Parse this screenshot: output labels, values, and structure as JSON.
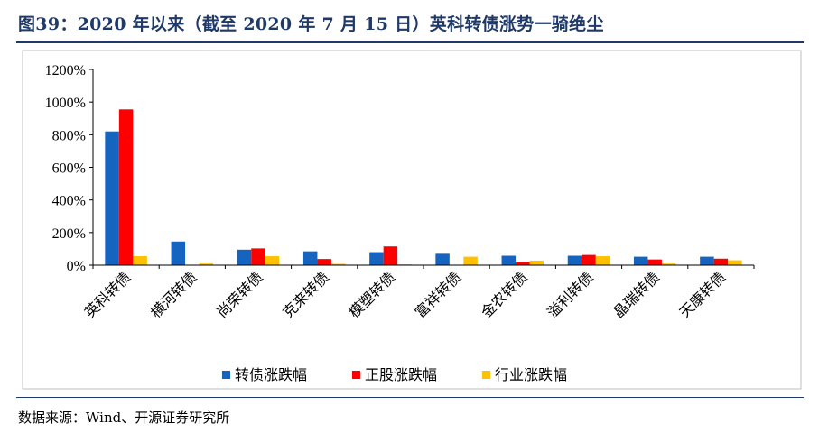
{
  "header": {
    "title": "图39：2020 年以来（截至 2020 年 7 月 15 日）英科转债涨势一骑绝尘"
  },
  "footer": {
    "source": "数据来源：Wind、开源证券研究所"
  },
  "colors": {
    "title": "#1f3a68",
    "series_blue": "#1565c0",
    "series_red": "#ff0000",
    "series_yellow": "#ffc000"
  },
  "chart_data": {
    "type": "bar",
    "categories": [
      "英科转债",
      "横河转债",
      "尚荣转债",
      "克来转债",
      "模塑转债",
      "富祥转债",
      "金农转债",
      "溢利转债",
      "晶瑞转债",
      "天康转债"
    ],
    "series": [
      {
        "name": "转债涨跌幅",
        "values": [
          820,
          145,
          95,
          85,
          80,
          70,
          58,
          58,
          52,
          52
        ]
      },
      {
        "name": "正股涨跌幅",
        "values": [
          955,
          0,
          103,
          38,
          115,
          0,
          20,
          63,
          35,
          40
        ]
      },
      {
        "name": "行业涨跌幅",
        "values": [
          55,
          10,
          55,
          8,
          5,
          52,
          28,
          55,
          10,
          30
        ]
      }
    ],
    "yticks": [
      "0%",
      "200%",
      "400%",
      "600%",
      "800%",
      "1000%",
      "1200%"
    ],
    "ylim": [
      0,
      1200
    ],
    "legend_position": "bottom",
    "grid": false
  }
}
